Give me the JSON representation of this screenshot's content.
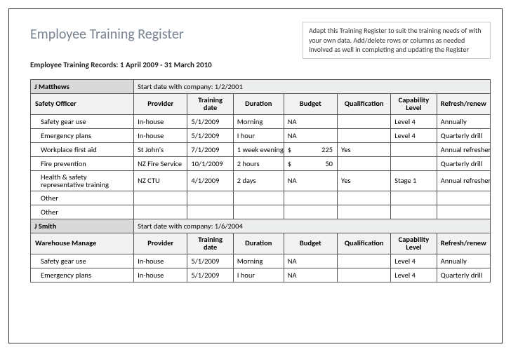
{
  "title": "Employee Training Register",
  "subtitle": "Employee Training Records: 1 April 2009 - 31 March 2010",
  "note": "Adapt this Training Register to suit the training needs of with your own data. Add/delete rows or columns as needed involved as well in completing and updating the Register",
  "columns": {
    "provider": "Provider",
    "training_date": "Training date",
    "duration": "Duration",
    "budget": "Budget",
    "qualification": "Qualification",
    "capability": "Capability Level",
    "refresh": "Refresh/renew"
  },
  "start_date_prefix": "Start date with company: ",
  "employees": [
    {
      "name": "J Matthews",
      "role": "Safety Officer",
      "start_date": "1/2/2001",
      "rows": [
        {
          "name": "Safety gear use",
          "provider": "In-house",
          "date": "5/1/2009",
          "duration": "Morning",
          "budget": "NA",
          "qual": "",
          "cap": "Level 4",
          "refresh": "Annually"
        },
        {
          "name": "Emergency plans",
          "provider": "In-house",
          "date": "5/1/2009",
          "duration": "I hour",
          "budget": "NA",
          "qual": "",
          "cap": "Level 4",
          "refresh": "Quarterly drill"
        },
        {
          "name": "Workplace first aid",
          "provider": "St John's",
          "date": "7/1/2009",
          "duration": "1 week evening",
          "budget": "225",
          "budget_prefix": "$",
          "qual": "Yes",
          "cap": "",
          "refresh": "Annual refresher"
        },
        {
          "name": "Fire prevention",
          "provider": "NZ Fire Service",
          "date": "10/1/2009",
          "duration": "2 hours",
          "budget": "50",
          "budget_prefix": "$",
          "qual": "",
          "cap": "",
          "refresh": "Quarterly drill"
        },
        {
          "name": "Health & safety representative training",
          "provider": "NZ CTU",
          "date": "4/1/2009",
          "duration": "2 days",
          "budget": "NA",
          "qual": "Yes",
          "cap": "Stage 1",
          "refresh": "Annual refresher"
        },
        {
          "name": "Other",
          "provider": "",
          "date": "",
          "duration": "",
          "budget": "",
          "qual": "",
          "cap": "",
          "refresh": ""
        },
        {
          "name": "Other",
          "provider": "",
          "date": "",
          "duration": "",
          "budget": "",
          "qual": "",
          "cap": "",
          "refresh": ""
        }
      ]
    },
    {
      "name": "J Smith",
      "role": "Warehouse Manage",
      "start_date": "1/6/2004",
      "rows": [
        {
          "name": "Safety gear use",
          "provider": "In-house",
          "date": "5/1/2009",
          "duration": "Morning",
          "budget": "NA",
          "qual": "",
          "cap": "Level 4",
          "refresh": "Annually"
        },
        {
          "name": "Emergency plans",
          "provider": "In-house",
          "date": "5/1/2009",
          "duration": "I hour",
          "budget": "NA",
          "qual": "",
          "cap": "Level 4",
          "refresh": "Quarterly drill"
        }
      ]
    }
  ]
}
